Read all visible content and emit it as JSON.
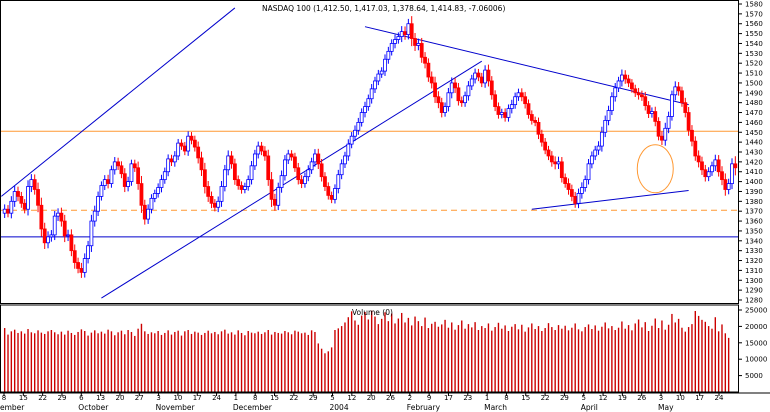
{
  "chart_data": [
    {
      "type": "candlestick",
      "title": "NASDAQ 100 (1,412.50, 1,417.03, 1,378.64, 1,414.83, -7.06006)",
      "ylim": [
        1280,
        1580
      ],
      "yticks": [
        1280,
        1290,
        1300,
        1310,
        1320,
        1330,
        1340,
        1350,
        1360,
        1370,
        1380,
        1390,
        1400,
        1410,
        1420,
        1430,
        1440,
        1450,
        1460,
        1470,
        1480,
        1490,
        1500,
        1510,
        1520,
        1530,
        1540,
        1550,
        1560,
        1570,
        1580
      ],
      "x_day_labels": [
        "8",
        "15",
        "22",
        "29",
        "6",
        "13",
        "20",
        "27",
        "3",
        "10",
        "17",
        "24",
        "1",
        "8",
        "15",
        "22",
        "29",
        "5",
        "12",
        "20",
        "26",
        "2",
        "9",
        "17",
        "23",
        "1",
        "8",
        "15",
        "22",
        "29",
        "5",
        "12",
        "19",
        "26",
        "3",
        "10",
        "17",
        "24"
      ],
      "month_labels": [
        "ember",
        "October",
        "November",
        "December",
        "2004",
        "February",
        "March",
        "April",
        "May"
      ],
      "colors": {
        "up": "#0000ff",
        "down": "#ff0000",
        "trendline": "#0000cc",
        "horizontal_line": "#ff9933",
        "circle": "#ff9933",
        "volume": "#cc0000"
      },
      "close_series": [
        1372,
        1368,
        1380,
        1390,
        1385,
        1378,
        1372,
        1395,
        1402,
        1392,
        1376,
        1352,
        1338,
        1344,
        1346,
        1365,
        1368,
        1360,
        1345,
        1346,
        1330,
        1318,
        1312,
        1308,
        1322,
        1335,
        1360,
        1370,
        1385,
        1396,
        1402,
        1398,
        1412,
        1420,
        1416,
        1408,
        1395,
        1400,
        1418,
        1414,
        1398,
        1376,
        1362,
        1372,
        1383,
        1388,
        1394,
        1402,
        1410,
        1423,
        1420,
        1426,
        1439,
        1436,
        1431,
        1446,
        1442,
        1435,
        1424,
        1412,
        1395,
        1385,
        1378,
        1374,
        1380,
        1395,
        1412,
        1426,
        1418,
        1402,
        1396,
        1392,
        1395,
        1402,
        1416,
        1428,
        1436,
        1431,
        1426,
        1402,
        1382,
        1376,
        1394,
        1406,
        1422,
        1428,
        1425,
        1414,
        1402,
        1398,
        1405,
        1412,
        1420,
        1428,
        1418,
        1405,
        1395,
        1386,
        1382,
        1393,
        1407,
        1418,
        1426,
        1438,
        1446,
        1452,
        1460,
        1470,
        1476,
        1484,
        1494,
        1502,
        1509,
        1512,
        1524,
        1532,
        1540,
        1544,
        1547,
        1552,
        1549,
        1560,
        1545,
        1538,
        1540,
        1526,
        1520,
        1506,
        1500,
        1486,
        1480,
        1470,
        1476,
        1490,
        1500,
        1495,
        1482,
        1480,
        1487,
        1497,
        1504,
        1510,
        1506,
        1500,
        1513,
        1502,
        1488,
        1476,
        1468,
        1470,
        1465,
        1474,
        1478,
        1486,
        1490,
        1486,
        1479,
        1468,
        1462,
        1460,
        1448,
        1440,
        1432,
        1426,
        1420,
        1418,
        1420,
        1404,
        1398,
        1392,
        1385,
        1378,
        1388,
        1394,
        1402,
        1418,
        1426,
        1432,
        1436,
        1450,
        1462,
        1472,
        1486,
        1495,
        1502,
        1508,
        1504,
        1500,
        1494,
        1490,
        1488,
        1486,
        1477,
        1469,
        1471,
        1461,
        1446,
        1442,
        1454,
        1466,
        1488,
        1496,
        1492,
        1480,
        1470,
        1452,
        1441,
        1426,
        1420,
        1412,
        1405,
        1410,
        1416,
        1422,
        1410,
        1402,
        1392,
        1398,
        1418,
        1414
      ],
      "range_series": [
        14,
        12,
        15,
        16,
        14,
        13,
        12,
        18,
        16,
        15,
        20,
        22,
        18,
        16,
        14,
        15,
        14,
        16,
        18,
        15,
        16,
        18,
        14,
        16,
        15,
        14,
        18,
        16,
        14,
        12,
        13,
        14,
        12,
        14,
        12,
        13,
        16,
        14,
        12,
        12,
        18,
        22,
        16,
        14,
        12,
        11,
        12,
        14,
        12,
        13,
        12,
        14,
        12,
        11,
        12,
        14,
        12,
        13,
        16,
        18,
        20,
        16,
        14,
        12,
        14,
        16,
        14,
        16,
        14,
        15,
        12,
        12,
        11,
        12,
        14,
        12,
        13,
        12,
        14,
        18,
        22,
        16,
        14,
        15,
        14,
        12,
        11,
        12,
        14,
        13,
        12,
        13,
        12,
        14,
        15,
        14,
        13,
        12,
        11,
        12,
        14,
        13,
        12,
        14,
        12,
        14,
        13,
        12,
        14,
        12,
        14,
        12,
        12,
        11,
        14,
        13,
        12,
        14,
        12,
        16,
        15,
        14,
        22,
        16,
        14,
        16,
        15,
        14,
        16,
        18,
        16,
        14,
        12,
        14,
        16,
        15,
        14,
        12,
        12,
        14,
        12,
        13,
        12,
        12,
        14,
        16,
        14,
        13,
        12,
        11,
        12,
        12,
        14,
        12,
        12,
        13,
        14,
        12,
        12,
        11,
        14,
        13,
        12,
        12,
        14,
        16,
        15,
        14,
        12,
        15,
        14,
        13,
        14,
        15,
        12,
        14,
        13,
        12,
        14,
        16,
        14,
        14,
        13,
        14,
        12,
        16,
        14,
        12,
        11,
        12,
        14,
        12,
        14,
        13,
        12,
        14,
        12,
        14,
        16,
        14,
        12,
        16,
        14,
        12,
        14,
        16,
        15,
        14,
        16,
        15,
        14,
        13,
        12,
        15,
        14,
        16,
        18,
        14,
        16,
        22,
        16
      ],
      "volume_ylim": [
        0,
        25000
      ],
      "volume_yticks": [
        5000,
        10000,
        15000,
        20000,
        25000
      ],
      "volume_label": "Volume (0)",
      "volume_series": [
        19500,
        17500,
        18500,
        19000,
        18000,
        18500,
        17800,
        19200,
        18200,
        17900,
        18800,
        18100,
        17700,
        18500,
        18900,
        18200,
        17600,
        18400,
        17500,
        18700,
        18000,
        17400,
        18300,
        19100,
        18600,
        17200,
        18100,
        18800,
        17900,
        18400,
        17800,
        19000,
        18500,
        17300,
        18200,
        18700,
        17600,
        18900,
        18300,
        17100,
        19300,
        20800,
        18500,
        17700,
        18200,
        17900,
        18600,
        17400,
        18000,
        18800,
        17500,
        18300,
        18700,
        17200,
        18500,
        18900,
        17700,
        18400,
        18100,
        17400,
        18000,
        18700,
        17900,
        18300,
        17600,
        18500,
        19000,
        17800,
        18200,
        17500,
        18800,
        18000,
        17300,
        18600,
        18100,
        17900,
        18400,
        17700,
        18200,
        18900,
        17500,
        18300,
        18000,
        17800,
        18600,
        18200,
        17600,
        18700,
        18400,
        17900,
        18100,
        17400,
        18800,
        18300,
        14800,
        13200,
        11800,
        12400,
        13600,
        18900,
        19400,
        20100,
        21200,
        22800,
        24600,
        21800,
        20500,
        23300,
        24400,
        22100,
        24800,
        23000,
        20700,
        22300,
        24300,
        21600,
        23900,
        20900,
        22400,
        24100,
        21200,
        22600,
        20300,
        23000,
        21600,
        20100,
        22700,
        19500,
        20800,
        21400,
        19900,
        20600,
        22000,
        19600,
        21200,
        19000,
        20400,
        21800,
        19300,
        20700,
        19700,
        21300,
        18900,
        20100,
        19500,
        20900,
        18700,
        19800,
        21100,
        19300,
        20300,
        18600,
        19900,
        20700,
        19100,
        20500,
        18400,
        19700,
        20900,
        19200,
        20100,
        18600,
        19500,
        21000,
        19800,
        18900,
        20400,
        19300,
        20200,
        18800,
        19600,
        20900,
        19100,
        18500,
        19800,
        20600,
        19200,
        20300,
        18700,
        19900,
        21200,
        19400,
        20100,
        18900,
        19600,
        21500,
        19300,
        20400,
        18800,
        20900,
        22100,
        19700,
        21300,
        18600,
        20200,
        22400,
        19500,
        21800,
        19000,
        20500,
        23800,
        21200,
        22300,
        19600,
        18400,
        19800,
        20700,
        24700,
        23200,
        22000,
        21400,
        20100,
        19300,
        22800,
        18500,
        20600,
        17900,
        16500
      ]
    }
  ]
}
